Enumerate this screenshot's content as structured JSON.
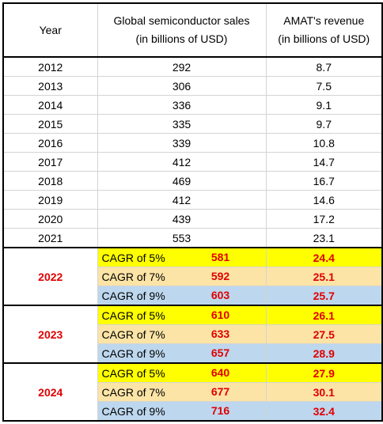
{
  "header": {
    "year": "Year",
    "sales": [
      "Global semiconductor sales",
      "(in billions of USD)"
    ],
    "revenue": [
      "AMAT's revenue",
      "(in billions of USD)"
    ]
  },
  "rows": [
    [
      2012,
      292,
      8.7
    ],
    [
      2013,
      306,
      7.5
    ],
    [
      2014,
      336,
      9.1
    ],
    [
      2015,
      335,
      9.7
    ],
    [
      2016,
      339,
      10.8
    ],
    [
      2017,
      412,
      14.7
    ],
    [
      2018,
      469,
      16.7
    ],
    [
      2019,
      412,
      14.6
    ],
    [
      2020,
      439,
      17.2
    ],
    [
      2021,
      553,
      23.1
    ]
  ],
  "projections": [
    {
      "year": 2022,
      "scenarios": [
        {
          "label": "CAGR of 5%",
          "sales": 581,
          "revenue": 24.4
        },
        {
          "label": "CAGR of 7%",
          "sales": 592,
          "revenue": 25.1
        },
        {
          "label": "CAGR of 9%",
          "sales": 603,
          "revenue": 25.7
        }
      ]
    },
    {
      "year": 2023,
      "scenarios": [
        {
          "label": "CAGR of 5%",
          "sales": 610,
          "revenue": 26.1
        },
        {
          "label": "CAGR of 7%",
          "sales": 633,
          "revenue": 27.5
        },
        {
          "label": "CAGR of 9%",
          "sales": 657,
          "revenue": 28.9
        }
      ]
    },
    {
      "year": 2024,
      "scenarios": [
        {
          "label": "CAGR of 5%",
          "sales": 640,
          "revenue": 27.9
        },
        {
          "label": "CAGR of 7%",
          "sales": 677,
          "revenue": 30.1
        },
        {
          "label": "CAGR of 9%",
          "sales": 716,
          "revenue": 32.4
        }
      ]
    }
  ]
}
